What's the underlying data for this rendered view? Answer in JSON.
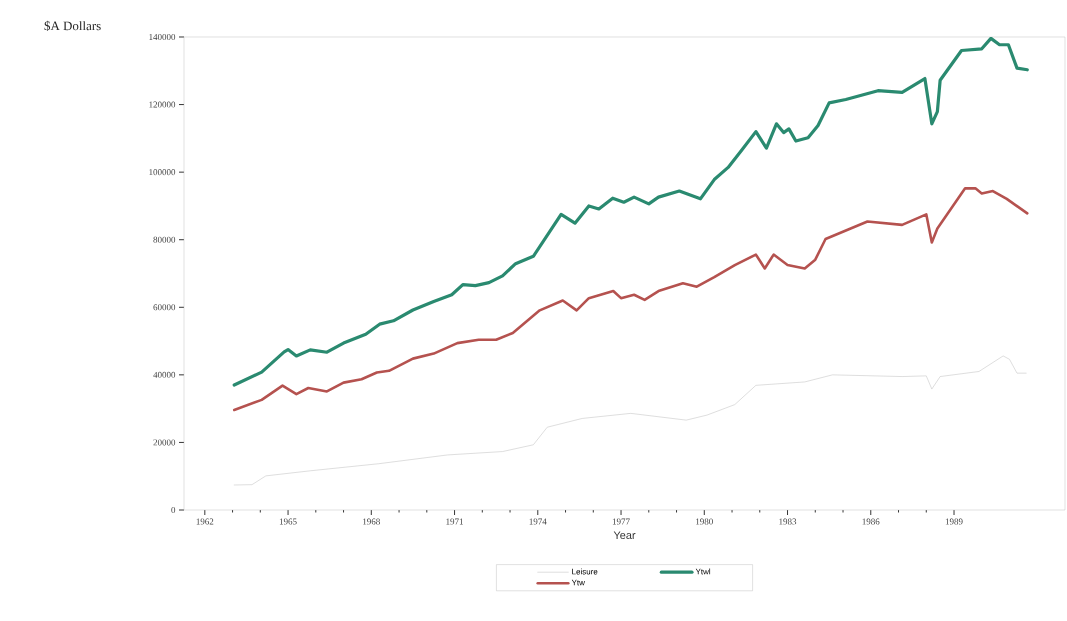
{
  "chart_data": {
    "type": "line",
    "xlabel": "Year",
    "ylabel": "$A Dollars",
    "xlim": [
      1961.25,
      1993
    ],
    "ylim": [
      0,
      140000
    ],
    "xticks": [
      1962,
      1965,
      1968,
      1971,
      1974,
      1977,
      1980,
      1983,
      1986,
      1989
    ],
    "yticks": [
      0,
      20000,
      40000,
      60000,
      80000,
      100000,
      120000,
      140000
    ],
    "grid": false,
    "legend": "bottom",
    "marker": "none",
    "line_style": "solid",
    "series": [
      {
        "name": "Leisure",
        "color": "#c8c8c8",
        "x": [
          1963.06,
          1963.7,
          1964.2,
          1965.8,
          1968.27,
          1970.75,
          1972.73,
          1973.84,
          1974.34,
          1975.6,
          1977.35,
          1979.35,
          1980.1,
          1981.1,
          1981.86,
          1983.62,
          1984.62,
          1987.13,
          1988.0,
          1988.2,
          1988.5,
          1989.9,
          1990.77,
          1991.0,
          1991.27,
          1991.6
        ],
        "values": [
          7400,
          7500,
          10100,
          11600,
          13700,
          16300,
          17300,
          19300,
          24500,
          27100,
          28600,
          26600,
          28100,
          31200,
          36900,
          37900,
          40000,
          39500,
          39700,
          35800,
          39500,
          41000,
          45600,
          44600,
          40500,
          40500
        ]
      },
      {
        "name": "Ytwl",
        "color": "#2a8a70",
        "x": [
          1963.06,
          1964.05,
          1964.86,
          1965.0,
          1965.3,
          1965.8,
          1966.4,
          1967.0,
          1967.8,
          1968.3,
          1968.8,
          1969.5,
          1970.25,
          1970.9,
          1971.3,
          1971.75,
          1972.24,
          1972.73,
          1973.2,
          1973.84,
          1974.84,
          1975.34,
          1975.84,
          1976.2,
          1976.7,
          1977.1,
          1977.47,
          1978.0,
          1978.35,
          1979.1,
          1979.86,
          1980.36,
          1980.86,
          1981.36,
          1981.86,
          1982.24,
          1982.6,
          1982.86,
          1983.05,
          1983.3,
          1983.74,
          1984.1,
          1984.5,
          1985.1,
          1986.26,
          1987.13,
          1987.95,
          1988.2,
          1988.4,
          1988.5,
          1989.27,
          1990.0,
          1990.33,
          1990.64,
          1990.96,
          1991.27,
          1991.64
        ],
        "values": [
          37000,
          40800,
          46800,
          47500,
          45600,
          47400,
          46700,
          49400,
          52000,
          55000,
          56000,
          59200,
          61700,
          63700,
          66700,
          66400,
          67300,
          69300,
          72900,
          75100,
          87500,
          84900,
          90000,
          89100,
          92300,
          91100,
          92600,
          90600,
          92600,
          94400,
          92100,
          97800,
          101400,
          106600,
          112000,
          107100,
          114300,
          111700,
          112800,
          109200,
          110200,
          113800,
          120500,
          121500,
          124100,
          123600,
          127700,
          114300,
          117900,
          127200,
          136000,
          136500,
          139600,
          137700,
          137700,
          130800,
          130300
        ]
      },
      {
        "name": "Ytw",
        "color": "#b5524f",
        "x": [
          1963.06,
          1964.05,
          1964.8,
          1965.3,
          1965.73,
          1966.4,
          1967.0,
          1967.65,
          1968.2,
          1968.64,
          1969.5,
          1970.25,
          1971.1,
          1971.87,
          1972.5,
          1973.1,
          1974.07,
          1974.9,
          1975.4,
          1975.84,
          1976.72,
          1977.0,
          1977.47,
          1977.85,
          1978.35,
          1979.23,
          1979.73,
          1980.36,
          1981.1,
          1981.86,
          1982.18,
          1982.5,
          1983.0,
          1983.62,
          1984.0,
          1984.37,
          1985.88,
          1987.13,
          1988.0,
          1988.2,
          1988.4,
          1989.4,
          1989.77,
          1990.0,
          1990.4,
          1990.9,
          1991.64
        ],
        "values": [
          29600,
          32600,
          36800,
          34300,
          36100,
          35100,
          37700,
          38700,
          40700,
          41200,
          44800,
          46300,
          49400,
          50400,
          50400,
          52400,
          59100,
          62000,
          59100,
          62700,
          64800,
          62700,
          63700,
          62200,
          64800,
          67100,
          66100,
          68900,
          72500,
          75600,
          71500,
          75600,
          72500,
          71500,
          74100,
          80200,
          85400,
          84400,
          87500,
          79200,
          83300,
          95200,
          95200,
          93700,
          94400,
          92100,
          87800
        ]
      }
    ]
  }
}
